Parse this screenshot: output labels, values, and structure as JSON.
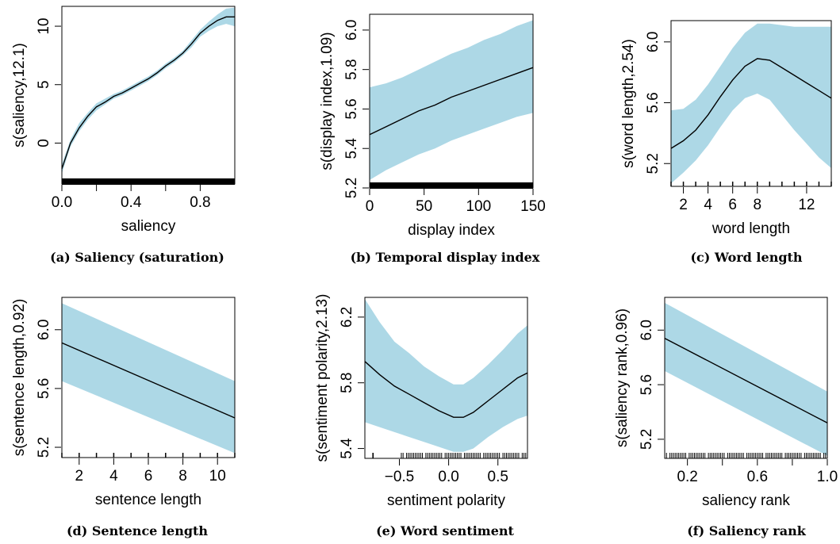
{
  "colors": {
    "band": "#ADD8E6",
    "line": "#000000",
    "axis": "#000000"
  },
  "chart_data": [
    {
      "type": "line",
      "caption": "(a) Saliency (saturation)",
      "xlabel": "saliency",
      "ylabel": "s(saliency,12.1)",
      "xlim": [
        0,
        1.0
      ],
      "ylim": [
        -3.5,
        11.7
      ],
      "xticks": [
        0.0,
        0.2,
        0.4,
        0.6,
        0.8
      ],
      "xtick_labels": [
        "0.0",
        "",
        "0.4",
        "",
        "0.8"
      ],
      "yticks": [
        0,
        5,
        10
      ],
      "ytick_labels": [
        "0",
        "5",
        "10"
      ],
      "ylabel_rotated_ticks": true,
      "series": [
        {
          "x": [
            0.0,
            0.05,
            0.1,
            0.15,
            0.2,
            0.25,
            0.3,
            0.35,
            0.4,
            0.45,
            0.5,
            0.55,
            0.6,
            0.65,
            0.7,
            0.75,
            0.8,
            0.85,
            0.9,
            0.95,
            1.0
          ],
          "y": [
            -2.2,
            0.0,
            1.3,
            2.3,
            3.1,
            3.5,
            4.0,
            4.3,
            4.7,
            5.1,
            5.5,
            6.0,
            6.6,
            7.1,
            7.7,
            8.5,
            9.4,
            10.0,
            10.5,
            10.8,
            10.8
          ],
          "lower": [
            -2.6,
            -0.3,
            1.0,
            2.0,
            2.8,
            3.3,
            3.8,
            4.1,
            4.5,
            4.9,
            5.3,
            5.8,
            6.4,
            6.9,
            7.5,
            8.2,
            9.1,
            9.6,
            10.0,
            10.2,
            10.0
          ],
          "upper": [
            -1.8,
            0.3,
            1.7,
            2.6,
            3.4,
            3.8,
            4.2,
            4.5,
            4.9,
            5.3,
            5.7,
            6.2,
            6.8,
            7.3,
            7.9,
            8.8,
            9.7,
            10.4,
            11.0,
            11.5,
            11.6
          ]
        }
      ],
      "rug": {
        "type": "dense",
        "range": [
          0.0,
          1.0
        ]
      }
    },
    {
      "type": "line",
      "caption": "(b) Temporal display index",
      "xlabel": "display index",
      "ylabel": "s(display index,1.09)",
      "xlim": [
        0,
        150
      ],
      "ylim": [
        5.2,
        6.08
      ],
      "xticks": [
        0,
        50,
        100,
        150
      ],
      "xtick_labels": [
        "0",
        "50",
        "100",
        "150"
      ],
      "yticks": [
        5.2,
        5.4,
        5.6,
        5.8,
        6.0
      ],
      "ytick_labels": [
        "5.2",
        "5.4",
        "5.6",
        "5.8",
        "6.0"
      ],
      "series": [
        {
          "x": [
            0,
            15,
            30,
            45,
            60,
            75,
            90,
            105,
            120,
            135,
            150
          ],
          "y": [
            5.47,
            5.51,
            5.55,
            5.59,
            5.62,
            5.66,
            5.69,
            5.72,
            5.75,
            5.78,
            5.81
          ],
          "lower": [
            5.24,
            5.29,
            5.33,
            5.37,
            5.4,
            5.44,
            5.47,
            5.5,
            5.53,
            5.56,
            5.58
          ],
          "upper": [
            5.71,
            5.73,
            5.76,
            5.8,
            5.84,
            5.88,
            5.91,
            5.95,
            5.98,
            6.02,
            6.05
          ]
        }
      ],
      "rug": {
        "type": "dense",
        "range": [
          0,
          150
        ]
      }
    },
    {
      "type": "line",
      "caption": "(c) Word length",
      "xlabel": "word length",
      "ylabel": "s(word length,2.54)",
      "xlim": [
        1,
        14
      ],
      "ylim": [
        5.05,
        6.14
      ],
      "xticks": [
        2,
        4,
        6,
        8,
        12
      ],
      "xtick_labels": [
        "2",
        "4",
        "6",
        "8",
        "12"
      ],
      "yticks": [
        5.2,
        5.6,
        6.0
      ],
      "ytick_labels": [
        "5.2",
        "5.6",
        "6.0"
      ],
      "series": [
        {
          "x": [
            1,
            2,
            3,
            4,
            5,
            6,
            7,
            8,
            9,
            10,
            11,
            12,
            13,
            14
          ],
          "y": [
            5.3,
            5.35,
            5.42,
            5.52,
            5.64,
            5.75,
            5.84,
            5.89,
            5.88,
            5.83,
            5.78,
            5.73,
            5.68,
            5.63
          ],
          "lower": [
            5.07,
            5.14,
            5.22,
            5.32,
            5.44,
            5.55,
            5.63,
            5.66,
            5.62,
            5.52,
            5.42,
            5.33,
            5.24,
            5.17
          ],
          "upper": [
            5.55,
            5.56,
            5.62,
            5.72,
            5.84,
            5.96,
            6.06,
            6.12,
            6.12,
            6.11,
            6.1,
            6.1,
            6.1,
            6.1
          ]
        }
      ],
      "rug": {
        "type": "ticks",
        "x": [
          1,
          2,
          3,
          4,
          5,
          6,
          7,
          8,
          9,
          10,
          11,
          12,
          13,
          14
        ]
      }
    },
    {
      "type": "line",
      "caption": "(d) Sentence length",
      "xlabel": "sentence length",
      "ylabel": "s(sentence length,0.92)",
      "xlim": [
        1,
        11
      ],
      "ylim": [
        5.13,
        6.22
      ],
      "xticks": [
        2,
        4,
        6,
        8,
        10
      ],
      "xtick_labels": [
        "2",
        "4",
        "6",
        "8",
        "10"
      ],
      "yticks": [
        5.2,
        5.6,
        6.0
      ],
      "ytick_labels": [
        "5.2",
        "5.6",
        "6.0"
      ],
      "series": [
        {
          "x": [
            1,
            11
          ],
          "y": [
            5.91,
            5.4
          ],
          "lower": [
            5.65,
            5.16
          ],
          "upper": [
            6.18,
            5.65
          ]
        }
      ],
      "rug": {
        "type": "ticks",
        "x": [
          1,
          2,
          3,
          4,
          5,
          6,
          7,
          8,
          9,
          10,
          11
        ]
      }
    },
    {
      "type": "line",
      "caption": "(e) Word sentiment",
      "xlabel": "sentiment polarity",
      "ylabel": "s(sentiment polarity,2.13)",
      "xlim": [
        -0.85,
        0.8
      ],
      "ylim": [
        5.34,
        6.32
      ],
      "xticks": [
        -0.5,
        0.0,
        0.5
      ],
      "xtick_labels": [
        "−0.5",
        "0.0",
        "0.5"
      ],
      "yticks": [
        5.4,
        5.8,
        6.2
      ],
      "ytick_labels": [
        "5.4",
        "5.8",
        "6.2"
      ],
      "series": [
        {
          "x": [
            -0.85,
            -0.7,
            -0.55,
            -0.4,
            -0.25,
            -0.1,
            0.05,
            0.15,
            0.25,
            0.4,
            0.55,
            0.7,
            0.8
          ],
          "y": [
            5.93,
            5.85,
            5.78,
            5.73,
            5.68,
            5.63,
            5.59,
            5.59,
            5.62,
            5.69,
            5.76,
            5.83,
            5.86
          ],
          "lower": [
            5.56,
            5.53,
            5.5,
            5.47,
            5.44,
            5.41,
            5.38,
            5.38,
            5.4,
            5.47,
            5.53,
            5.58,
            5.6
          ],
          "upper": [
            6.31,
            6.17,
            6.05,
            5.98,
            5.9,
            5.84,
            5.79,
            5.79,
            5.83,
            5.91,
            6.0,
            6.1,
            6.15
          ]
        }
      ],
      "rug": {
        "type": "sparse",
        "segments": [
          [
            -0.77,
            -0.76
          ],
          [
            -0.48,
            0.8
          ]
        ]
      }
    },
    {
      "type": "line",
      "caption": "(f) Saliency rank",
      "xlabel": "saliency rank",
      "ylabel": "s(saliency rank,0.96)",
      "xlim": [
        0.07,
        1.0
      ],
      "ylim": [
        5.06,
        6.24
      ],
      "xticks": [
        0.2,
        0.4,
        0.6,
        0.8,
        1.0
      ],
      "xtick_labels": [
        "0.2",
        "",
        "0.6",
        "",
        "1.0"
      ],
      "yticks": [
        5.2,
        5.6,
        6.0
      ],
      "ytick_labels": [
        "5.2",
        "5.6",
        "6.0"
      ],
      "series": [
        {
          "x": [
            0.07,
            1.0
          ],
          "y": [
            5.94,
            5.32
          ],
          "lower": [
            5.7,
            5.08
          ],
          "upper": [
            6.2,
            5.55
          ]
        }
      ],
      "rug": {
        "type": "sparse",
        "segments": [
          [
            0.07,
            0.99
          ]
        ]
      }
    }
  ]
}
